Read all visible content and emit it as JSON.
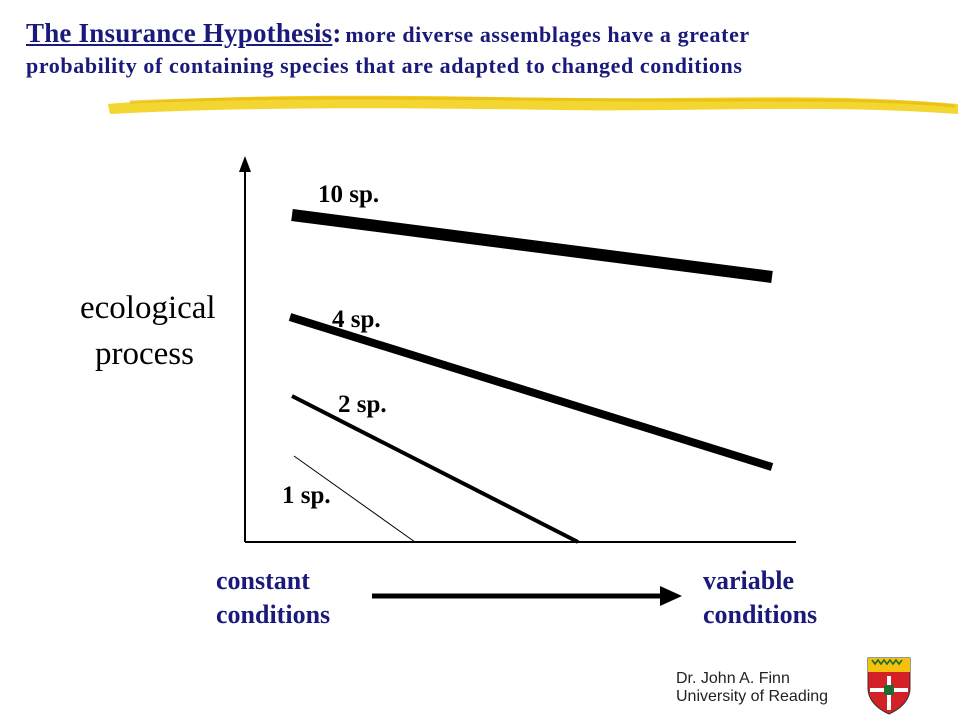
{
  "title": {
    "main": "The Insurance Hypothesis",
    "colon": ":",
    "rest_line1": "more diverse assemblages have a greater",
    "line2": "probability of containing species that are adapted to changed conditions"
  },
  "axes": {
    "y_label_line1": "ecological",
    "y_label_line2": "process",
    "x_left_line1": "constant",
    "x_left_line2": "conditions",
    "x_right_line1": "variable",
    "x_right_line2": "conditions"
  },
  "series": [
    {
      "label": "10 sp."
    },
    {
      "label": "4 sp."
    },
    {
      "label": "2 sp."
    },
    {
      "label": "1 sp."
    }
  ],
  "credit": {
    "line1": "Dr. John A. Finn",
    "line2": "University of Reading"
  },
  "colors": {
    "title": "#1a1a7a",
    "highlight": "#f2d21c",
    "lines": "#000000",
    "shield_red": "#d42027",
    "shield_yellow": "#f4c20d",
    "shield_green": "#1e6b34"
  }
}
